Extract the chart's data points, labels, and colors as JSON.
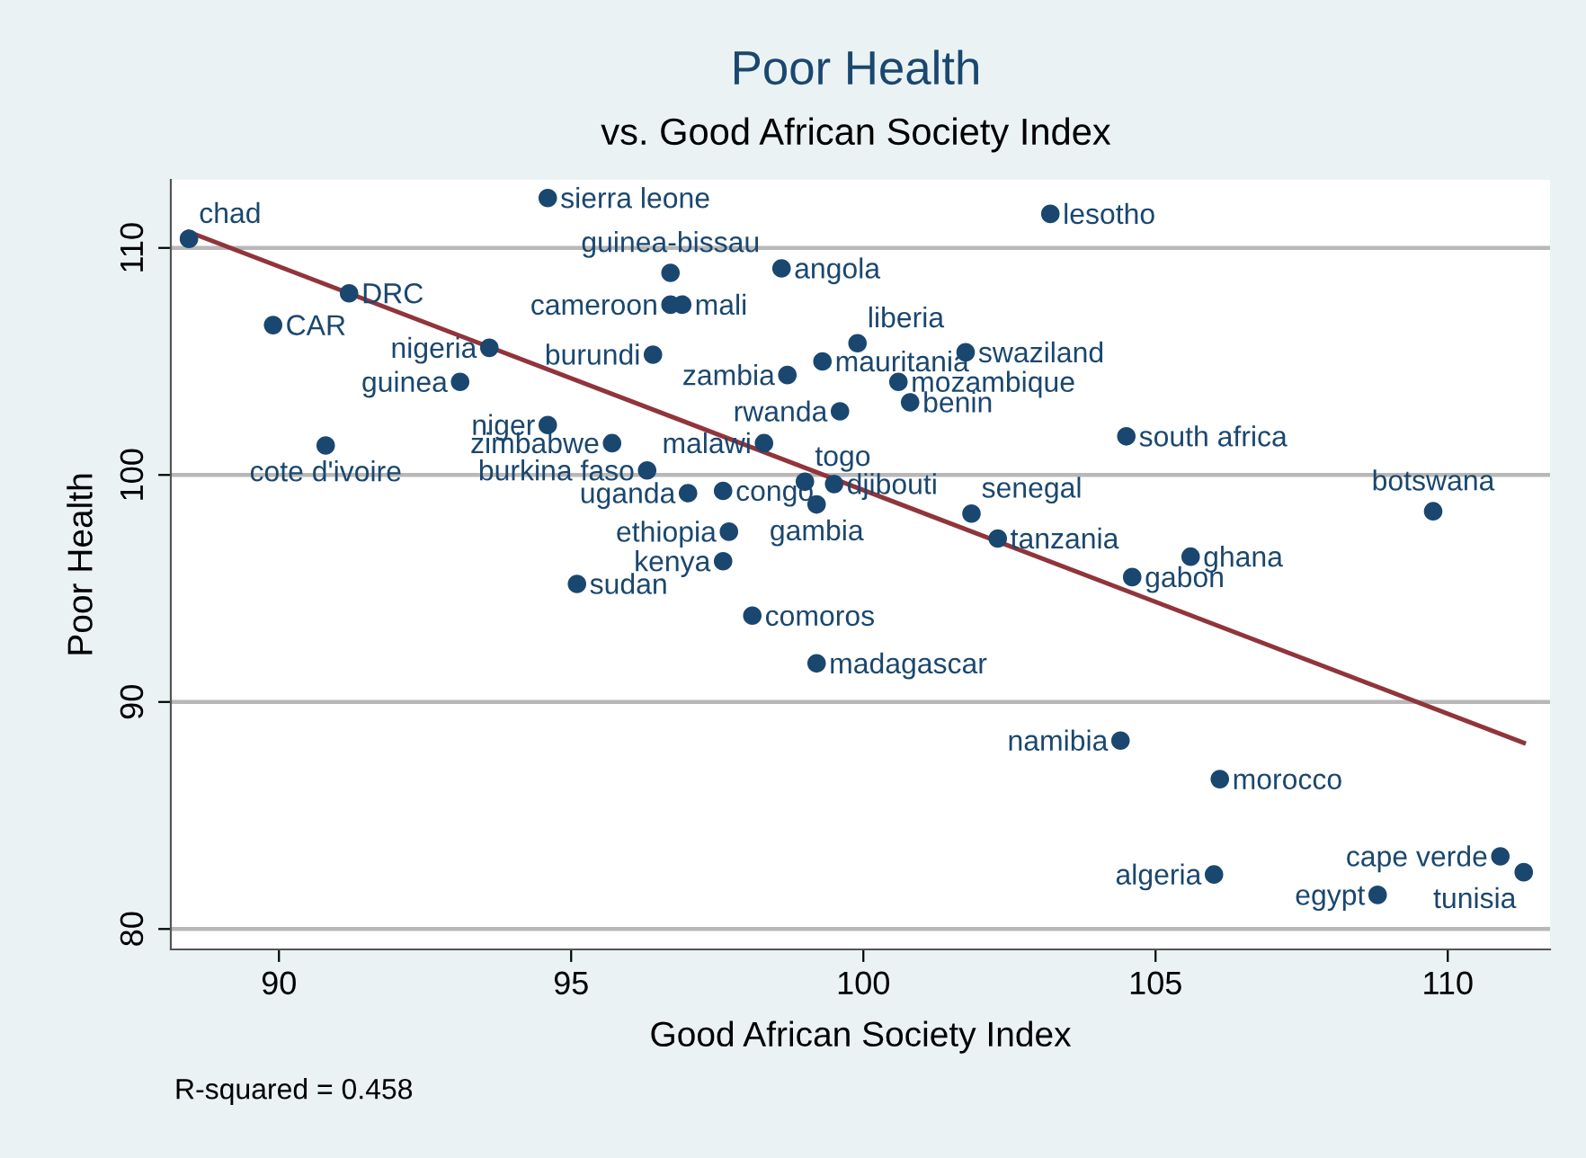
{
  "chart_data": {
    "type": "scatter",
    "title": "Poor Health",
    "subtitle": "vs. Good African Society Index",
    "xlabel": "Good African Society Index",
    "ylabel": "Poor Health",
    "xlim": [
      88.15,
      111.75
    ],
    "xticks": [
      90,
      95,
      100,
      105,
      110
    ],
    "ylim": [
      79.1,
      113.0
    ],
    "yticks": [
      80,
      90,
      100,
      110
    ],
    "grid": "y",
    "series": [
      {
        "marker": "circle",
        "color": "#1a476f",
        "x": [
          88.46,
          94.6,
          91.2,
          89.9,
          93.6,
          93.1,
          90.8,
          96.7,
          98.6,
          96.7,
          96.9,
          96.4,
          98.7,
          94.6,
          95.7,
          98.3,
          99.6,
          96.3,
          97.0,
          97.6,
          99.0,
          99.2,
          99.5,
          97.7,
          97.6,
          95.1,
          98.1,
          99.2,
          99.9,
          99.3,
          101.75,
          100.6,
          100.8,
          104.5,
          103.2,
          101.85,
          109.75,
          102.3,
          105.6,
          104.6,
          104.4,
          106.1,
          106.0,
          108.8,
          110.9,
          111.3
        ],
        "values": [
          110.4,
          112.2,
          108.0,
          106.6,
          105.6,
          104.1,
          101.3,
          108.9,
          109.1,
          107.5,
          107.5,
          105.3,
          104.4,
          102.2,
          101.4,
          101.4,
          102.8,
          100.2,
          99.2,
          99.3,
          99.7,
          98.7,
          99.6,
          97.5,
          96.2,
          95.2,
          93.8,
          91.7,
          105.8,
          105.0,
          105.4,
          104.1,
          103.2,
          101.7,
          111.5,
          98.3,
          98.4,
          97.2,
          96.4,
          95.5,
          88.3,
          86.6,
          82.4,
          81.5,
          83.2,
          82.5
        ]
      },
      {
        "type": "line",
        "color": "#90353b",
        "x": [
          88.46,
          111.3
        ],
        "values": [
          110.7,
          88.2
        ]
      }
    ],
    "annotations": [
      {
        "text": "chad",
        "x": 88.46,
        "y": 110.4
      },
      {
        "text": "sierra leone",
        "x": 94.6,
        "y": 112.2
      },
      {
        "text": "DRC",
        "x": 91.2,
        "y": 108.0
      },
      {
        "text": "CAR",
        "x": 89.9,
        "y": 106.6
      },
      {
        "text": "nigeria",
        "x": 93.6,
        "y": 105.6
      },
      {
        "text": "guinea",
        "x": 93.1,
        "y": 104.1
      },
      {
        "text": "cote d'ivoire",
        "x": 90.8,
        "y": 101.3
      },
      {
        "text": "guinea-bissau",
        "x": 96.7,
        "y": 108.9
      },
      {
        "text": "angola",
        "x": 98.6,
        "y": 109.1
      },
      {
        "text": "cameroon",
        "x": 96.7,
        "y": 107.5
      },
      {
        "text": "mali",
        "x": 96.9,
        "y": 107.5
      },
      {
        "text": "burundi",
        "x": 96.4,
        "y": 105.3
      },
      {
        "text": "zambia",
        "x": 98.7,
        "y": 104.4
      },
      {
        "text": "niger",
        "x": 94.6,
        "y": 102.2
      },
      {
        "text": "zimbabwe",
        "x": 95.7,
        "y": 101.4
      },
      {
        "text": "malawi",
        "x": 98.3,
        "y": 101.4
      },
      {
        "text": "rwanda",
        "x": 99.6,
        "y": 102.8
      },
      {
        "text": "burkina faso",
        "x": 96.3,
        "y": 100.2
      },
      {
        "text": "uganda",
        "x": 97.0,
        "y": 99.2
      },
      {
        "text": "congo",
        "x": 97.6,
        "y": 99.3
      },
      {
        "text": "togo",
        "x": 99.0,
        "y": 99.7
      },
      {
        "text": "gambia",
        "x": 99.2,
        "y": 98.7
      },
      {
        "text": "djibouti",
        "x": 99.5,
        "y": 99.6
      },
      {
        "text": "ethiopia",
        "x": 97.7,
        "y": 97.5
      },
      {
        "text": "kenya",
        "x": 97.6,
        "y": 96.2
      },
      {
        "text": "sudan",
        "x": 95.1,
        "y": 95.2
      },
      {
        "text": "comoros",
        "x": 98.1,
        "y": 93.8
      },
      {
        "text": "madagascar",
        "x": 99.2,
        "y": 91.7
      },
      {
        "text": "liberia",
        "x": 99.9,
        "y": 105.8
      },
      {
        "text": "mauritania",
        "x": 99.3,
        "y": 105.0
      },
      {
        "text": "swaziland",
        "x": 101.75,
        "y": 105.4
      },
      {
        "text": "mozambique",
        "x": 100.6,
        "y": 104.1
      },
      {
        "text": "benin",
        "x": 100.8,
        "y": 103.2
      },
      {
        "text": "south africa",
        "x": 104.5,
        "y": 101.7
      },
      {
        "text": "lesotho",
        "x": 103.2,
        "y": 111.5
      },
      {
        "text": "senegal",
        "x": 101.85,
        "y": 98.3
      },
      {
        "text": "botswana",
        "x": 109.75,
        "y": 98.4
      },
      {
        "text": "tanzania",
        "x": 102.3,
        "y": 97.2
      },
      {
        "text": "ghana",
        "x": 105.6,
        "y": 96.4
      },
      {
        "text": "gabon",
        "x": 104.6,
        "y": 95.5
      },
      {
        "text": "namibia",
        "x": 104.4,
        "y": 88.3
      },
      {
        "text": "morocco",
        "x": 106.1,
        "y": 86.6
      },
      {
        "text": "algeria",
        "x": 106.0,
        "y": 82.4
      },
      {
        "text": "egypt",
        "x": 108.8,
        "y": 81.5
      },
      {
        "text": "cape verde",
        "x": 110.9,
        "y": 83.2
      },
      {
        "text": "tunisia",
        "x": 111.3,
        "y": 82.5
      },
      "R-squared = 0.458"
    ]
  }
}
